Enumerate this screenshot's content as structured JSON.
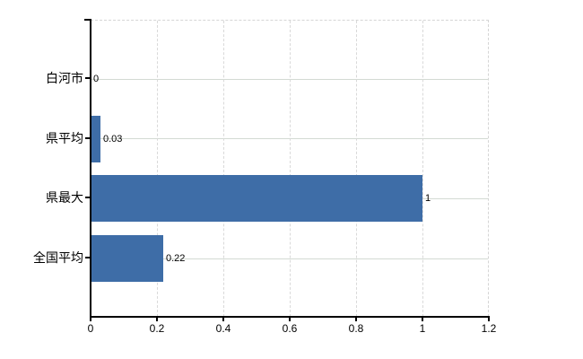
{
  "chart_data": {
    "type": "bar",
    "orientation": "horizontal",
    "title": "",
    "xlabel": "",
    "ylabel": "",
    "categories": [
      "白河市",
      "県平均",
      "県最大",
      "全国平均"
    ],
    "values": [
      0,
      0.03,
      1,
      0.22
    ],
    "data_labels": [
      "0",
      "0.03",
      "1",
      "0.22"
    ],
    "xlim": [
      0,
      1.2
    ],
    "x_tick_values": [
      0,
      0.2,
      0.4,
      0.6,
      0.8,
      1,
      1.2
    ],
    "x_tick_labels": [
      "0",
      "0.2",
      "0.4",
      "0.6",
      "0.8",
      "1",
      "1.2"
    ],
    "grid": "on",
    "legend": "none",
    "colors": {
      "bar": "#3e6da7",
      "axis": "#000000",
      "text": "#000000",
      "grid_horizontal": "#d3dad3",
      "grid_vertical": "#d9d9d9",
      "background": "#ffffff"
    }
  }
}
